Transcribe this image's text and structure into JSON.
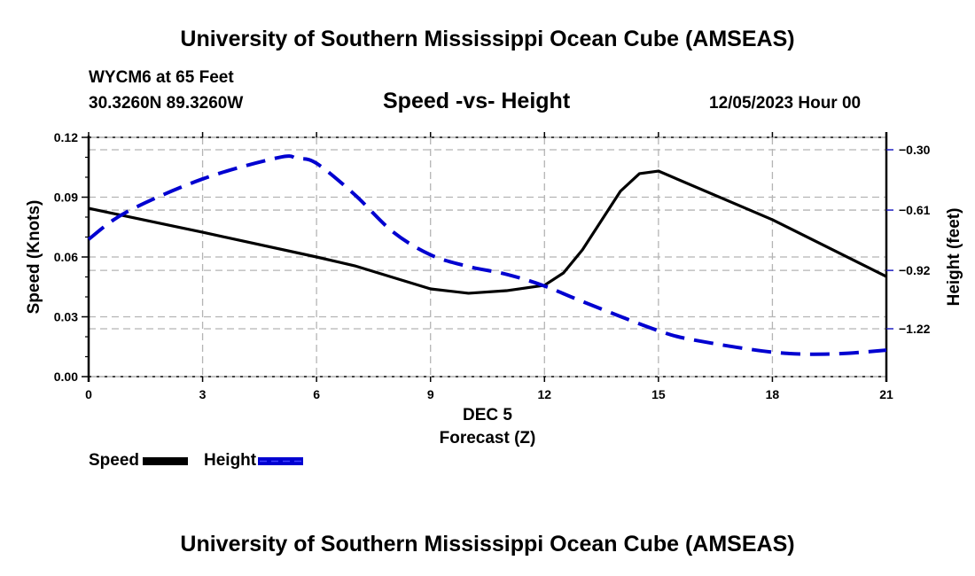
{
  "header": {
    "title": "University of Southern Mississippi Ocean Cube (AMSEAS)",
    "station": "WYCM6 at 65 Feet",
    "coordinates": "30.3260N  89.3260W",
    "subtitle": "Speed -vs- Height",
    "datetime": "12/05/2023 Hour 00"
  },
  "footer": {
    "title": "University of Southern Mississippi Ocean Cube (AMSEAS)"
  },
  "chart_data": {
    "type": "line",
    "title": "Speed -vs- Height",
    "xlabel": "Forecast (Z)",
    "xlabel_date": "DEC 5",
    "ylabel": "Speed (Knots)",
    "y2label": "Height (feet)",
    "xlim": [
      0,
      21
    ],
    "ylim": [
      0,
      0.12
    ],
    "y2_ticks": [
      -0.3,
      -0.61,
      -0.92,
      -1.22
    ],
    "y2_tick_labels": [
      "−0.30",
      "−0.61",
      "−0.92",
      "−1.22"
    ],
    "x_ticks": [
      0,
      3,
      6,
      9,
      12,
      15,
      18,
      21
    ],
    "x_tick_labels": [
      "0",
      "3",
      "6",
      "9",
      "12",
      "15",
      "18",
      "21"
    ],
    "y_ticks": [
      0,
      0.03,
      0.06,
      0.09,
      0.12
    ],
    "y_tick_labels": [
      "0.00",
      "0.03",
      "0.06",
      "0.09",
      "0.12"
    ],
    "grid": true,
    "legend_position": "bottom-left",
    "series": [
      {
        "name": "Speed",
        "axis": "left",
        "color": "#000000",
        "style": "solid",
        "x": [
          0,
          3,
          6,
          7,
          9,
          10,
          11,
          12,
          12.5,
          13,
          14,
          14.5,
          15,
          18,
          21
        ],
        "values": [
          0.0844,
          0.0724,
          0.06,
          0.0556,
          0.044,
          0.0418,
          0.0431,
          0.0458,
          0.052,
          0.0636,
          0.093,
          0.1018,
          0.1031,
          0.0787,
          0.0502
        ]
      },
      {
        "name": "Height",
        "axis": "right",
        "color": "#0000d0",
        "style": "dashed",
        "x": [
          0,
          1,
          3,
          5,
          5.5,
          6,
          7,
          8,
          9,
          10,
          11,
          12,
          13,
          15,
          16,
          18,
          19.5,
          21
        ],
        "values": [
          -0.76,
          -0.62,
          -0.45,
          -0.34,
          -0.345,
          -0.37,
          -0.53,
          -0.72,
          -0.84,
          -0.9,
          -0.94,
          -1.0,
          -1.08,
          -1.23,
          -1.28,
          -1.34,
          -1.35,
          -1.33
        ]
      }
    ]
  }
}
